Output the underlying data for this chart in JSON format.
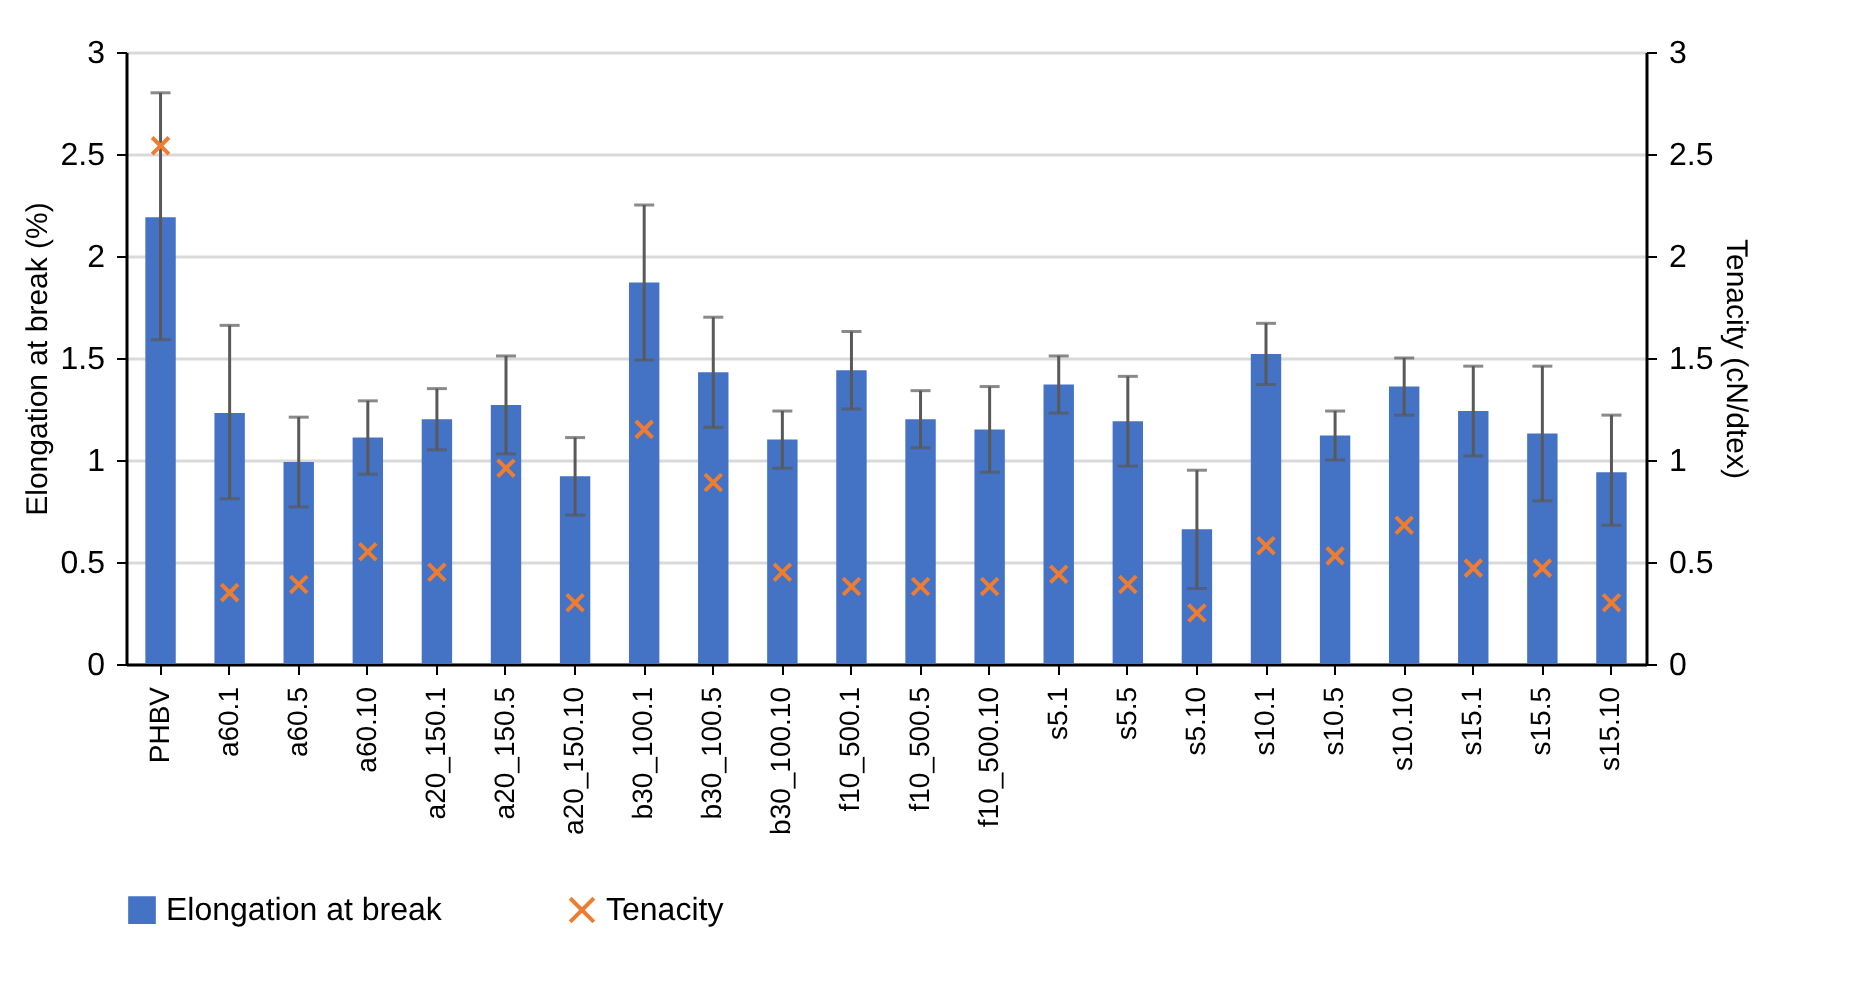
{
  "chart_data": {
    "type": "bar",
    "xlabel": null,
    "ylabel": "Elongation at break (%)",
    "y2label": "Tenacity (cN/dtex)",
    "categories": [
      "PHBV",
      "a60.1",
      "a60.5",
      "a60.10",
      "a20_150.1",
      "a20_150.5",
      "a20_150.10",
      "b30_100.1",
      "b30_100.5",
      "b30_100.10",
      "f10_500.1",
      "f10_500.5",
      "f10_500.10",
      "s5.1",
      "s5.5",
      "s5.10",
      "s10.1",
      "s10.5",
      "s10.10",
      "s15.1",
      "s15.5",
      "s15.10"
    ],
    "series": [
      {
        "name": "Elongation at break",
        "color": "#4472c4",
        "values": [
          2.19,
          1.23,
          0.99,
          1.11,
          1.2,
          1.27,
          0.92,
          1.87,
          1.43,
          1.1,
          1.44,
          1.2,
          1.15,
          1.37,
          1.19,
          0.66,
          1.52,
          1.12,
          1.36,
          1.24,
          1.13,
          0.94
        ],
        "errors": [
          [
            1.59,
            2.8
          ],
          [
            0.81,
            1.66
          ],
          [
            0.77,
            1.21
          ],
          [
            0.93,
            1.29
          ],
          [
            1.05,
            1.35
          ],
          [
            1.03,
            1.51
          ],
          [
            0.73,
            1.11
          ],
          [
            1.49,
            2.25
          ],
          [
            1.16,
            1.7
          ],
          [
            0.96,
            1.24
          ],
          [
            1.25,
            1.63
          ],
          [
            1.06,
            1.34
          ],
          [
            0.94,
            1.36
          ],
          [
            1.23,
            1.51
          ],
          [
            0.97,
            1.41
          ],
          [
            0.37,
            0.95
          ],
          [
            1.37,
            1.67
          ],
          [
            1.0,
            1.24
          ],
          [
            1.22,
            1.5
          ],
          [
            1.02,
            1.46
          ],
          [
            0.8,
            1.46
          ],
          [
            0.68,
            1.22
          ]
        ]
      },
      {
        "name": "Tenacity",
        "type": "scatter",
        "axis": "y2",
        "color": "#ed7d31",
        "values": [
          2.54,
          0.35,
          0.39,
          0.55,
          0.45,
          0.96,
          0.3,
          1.15,
          0.89,
          0.45,
          0.38,
          0.38,
          0.38,
          0.44,
          0.39,
          0.25,
          0.58,
          0.53,
          0.68,
          0.47,
          0.47,
          0.3
        ]
      }
    ],
    "ylim": [
      0,
      3
    ],
    "yticks": [
      0,
      0.5,
      1,
      1.5,
      2,
      2.5,
      3
    ],
    "y2lim": [
      0,
      3
    ],
    "y2ticks": [
      0,
      0.5,
      1,
      1.5,
      2,
      2.5,
      3
    ],
    "grid": "y",
    "legend": "bottom",
    "marker": "cross"
  }
}
